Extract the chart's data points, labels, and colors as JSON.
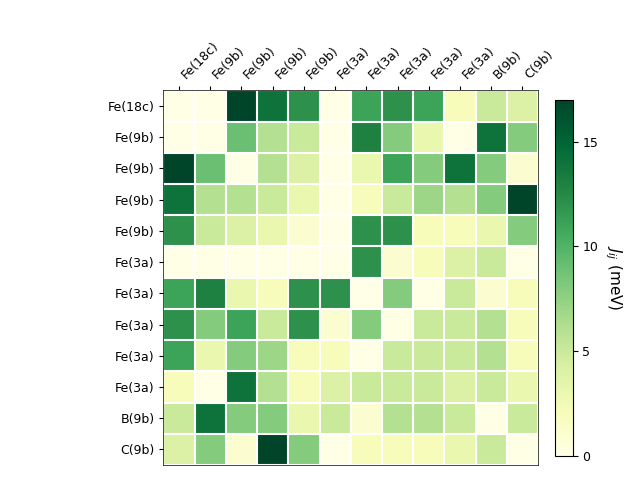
{
  "labels": [
    "Fe(18c)",
    "Fe(9b)",
    "Fe(9b)",
    "Fe(9b)",
    "Fe(9b)",
    "Fe(3a)",
    "Fe(3a)",
    "Fe(3a)",
    "Fe(3a)",
    "Fe(3a)",
    "B(9b)",
    "C(9b)"
  ],
  "matrix": [
    [
      0,
      0,
      17,
      14,
      12,
      0,
      11,
      12,
      11,
      2,
      5,
      4
    ],
    [
      0,
      0,
      9,
      6,
      5,
      0,
      13,
      8,
      3,
      0,
      14,
      8
    ],
    [
      17,
      9,
      0,
      6,
      4,
      0,
      3,
      11,
      8,
      14,
      8,
      1
    ],
    [
      14,
      6,
      6,
      5,
      3,
      0,
      2,
      5,
      7,
      6,
      8,
      17
    ],
    [
      12,
      5,
      4,
      3,
      1,
      0,
      12,
      12,
      2,
      2,
      3,
      8
    ],
    [
      0,
      0,
      0,
      0,
      0,
      0,
      12,
      1,
      2,
      4,
      5,
      0
    ],
    [
      11,
      13,
      3,
      2,
      12,
      12,
      0,
      8,
      0,
      5,
      1,
      2
    ],
    [
      12,
      8,
      11,
      5,
      12,
      1,
      8,
      0,
      5,
      5,
      6,
      2
    ],
    [
      11,
      3,
      8,
      7,
      2,
      2,
      0,
      5,
      5,
      5,
      6,
      2
    ],
    [
      2,
      0,
      14,
      6,
      2,
      4,
      5,
      5,
      5,
      4,
      5,
      3
    ],
    [
      5,
      14,
      8,
      8,
      3,
      5,
      1,
      6,
      6,
      5,
      0,
      5
    ],
    [
      4,
      8,
      1,
      17,
      8,
      0,
      2,
      2,
      2,
      3,
      5,
      0
    ]
  ],
  "vmin": 0,
  "vmax": 17,
  "cbar_label": "$J_{ij}$ (meV)",
  "cbar_ticks": [
    0,
    5,
    10,
    15
  ],
  "colormap": "YlGn",
  "figsize": [
    6.4,
    4.8
  ],
  "dpi": 100,
  "tick_fontsize": 9,
  "cbar_fontsize": 11
}
